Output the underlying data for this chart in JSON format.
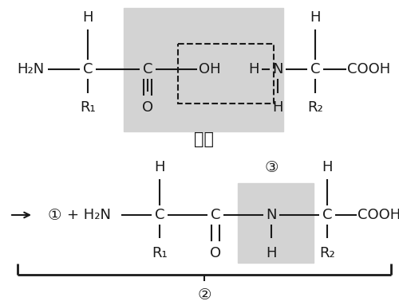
{
  "bg_color": "#ffffff",
  "gray_color": "#d3d3d3",
  "black": "#1a1a1a",
  "title": "缩合",
  "label1": "①",
  "label2": "②",
  "label3": "③",
  "fs": 13,
  "fs_title": 15,
  "fs_circle": 13
}
